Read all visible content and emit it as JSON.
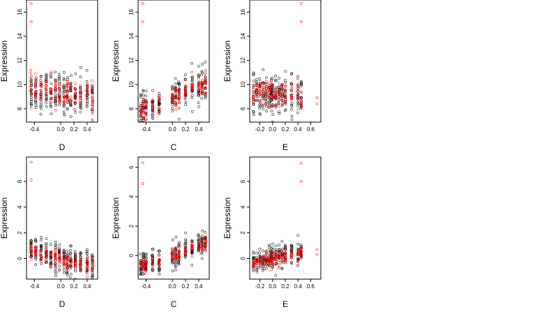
{
  "chart_data": [
    {
      "type": "scatter",
      "xlabel": "D",
      "ylabel": "Expression",
      "xlim": [
        -0.52,
        0.56
      ],
      "ylim": [
        6.9,
        17.0
      ],
      "xticks": [
        -0.4,
        0.0,
        0.2,
        0.4
      ],
      "xtick_labels": [
        "-0.4",
        "0.0",
        "0.2",
        "0.4"
      ],
      "yticks": [
        8,
        10,
        12,
        14,
        16
      ],
      "ytick_labels": [
        "8",
        "10",
        "12",
        "14",
        "16"
      ],
      "grid": false,
      "x_groups": [
        -0.45,
        -0.38,
        -0.3,
        -0.22,
        -0.15,
        -0.08,
        -0.02,
        0.05,
        0.1,
        0.15,
        0.22,
        0.3,
        0.4,
        0.48
      ],
      "observed": {
        "color": "#000000",
        "mean_intercept": 9.3,
        "mean_slope": -0.6,
        "spread": 0.8,
        "points_per_group": 18
      },
      "fitted": {
        "color": "#ff0000",
        "mean_intercept": 9.3,
        "mean_slope": -0.6,
        "spread": 0.6,
        "points_per_group": 10
      },
      "outliers": [
        {
          "x": -0.45,
          "y": 16.7
        },
        {
          "x": -0.45,
          "y": 15.2
        }
      ]
    },
    {
      "type": "scatter",
      "xlabel": "C",
      "ylabel": "Expression",
      "xlim": [
        -0.52,
        0.56
      ],
      "ylim": [
        6.9,
        17.0
      ],
      "xticks": [
        -0.4,
        0.0,
        0.2,
        0.4
      ],
      "xtick_labels": [
        "-0.4",
        "0.0",
        "0.2",
        "0.4"
      ],
      "yticks": [
        8,
        10,
        12,
        14,
        16
      ],
      "ytick_labels": [
        "8",
        "10",
        "12",
        "14",
        "16"
      ],
      "grid": false,
      "x_groups": [
        -0.48,
        -0.44,
        -0.4,
        -0.3,
        -0.2,
        0.0,
        0.05,
        0.1,
        0.2,
        0.3,
        0.4,
        0.45,
        0.5
      ],
      "observed": {
        "color": "#000000",
        "mean_intercept": 8.9,
        "mean_slope": 2.4,
        "spread": 0.7,
        "points_per_group": 18
      },
      "fitted": {
        "color": "#ff0000",
        "mean_intercept": 8.9,
        "mean_slope": 2.4,
        "spread": 0.45,
        "points_per_group": 10
      },
      "outliers": [
        {
          "x": -0.45,
          "y": 16.7
        },
        {
          "x": -0.45,
          "y": 15.2
        }
      ]
    },
    {
      "type": "scatter",
      "xlabel": "E",
      "ylabel": "Expression",
      "xlim": [
        -0.36,
        0.76
      ],
      "ylim": [
        6.9,
        17.0
      ],
      "xticks": [
        -0.2,
        0.0,
        0.2,
        0.4,
        0.6
      ],
      "xtick_labels": [
        "-0.2",
        "0.0",
        "0.2",
        "0.4",
        "0.6"
      ],
      "yticks": [
        8,
        10,
        12,
        14,
        16
      ],
      "ytick_labels": [
        "8",
        "10",
        "12",
        "14",
        "16"
      ],
      "grid": false,
      "x_groups": [
        -0.3,
        -0.25,
        -0.2,
        -0.15,
        -0.1,
        -0.05,
        -0.02,
        0.0,
        0.05,
        0.1,
        0.15,
        0.2,
        0.3,
        0.4,
        0.45
      ],
      "observed": {
        "color": "#000000",
        "mean_intercept": 9.2,
        "mean_slope": 0.0,
        "spread": 0.8,
        "points_per_group": 16
      },
      "fitted": {
        "color": "#ff0000",
        "mean_intercept": 9.2,
        "mean_slope": 0.0,
        "spread": 0.6,
        "points_per_group": 9
      },
      "outliers": [
        {
          "x": 0.45,
          "y": 16.7
        },
        {
          "x": 0.45,
          "y": 15.2
        },
        {
          "x": 0.7,
          "y": 8.9
        },
        {
          "x": 0.7,
          "y": 8.4
        }
      ]
    },
    {
      "type": "scatter",
      "xlabel": "D",
      "ylabel": "Expression",
      "xlim": [
        -0.52,
        0.56
      ],
      "ylim": [
        -1.6,
        7.9
      ],
      "xticks": [
        -0.4,
        0.0,
        0.2,
        0.4
      ],
      "xtick_labels": [
        "-0.4",
        "0.0",
        "0.2",
        "0.4"
      ],
      "yticks": [
        0,
        2,
        4,
        6
      ],
      "ytick_labels": [
        "0",
        "2",
        "4",
        "6"
      ],
      "grid": false,
      "x_groups": [
        -0.45,
        -0.38,
        -0.3,
        -0.22,
        -0.15,
        -0.08,
        -0.02,
        0.05,
        0.1,
        0.15,
        0.22,
        0.3,
        0.4,
        0.48
      ],
      "observed": {
        "color": "#000000",
        "mean_intercept": 0.0,
        "mean_slope": -1.35,
        "spread": 0.55,
        "points_per_group": 18
      },
      "fitted": {
        "color": "#ff0000",
        "mean_intercept": 0.0,
        "mean_slope": -1.35,
        "spread": 0.3,
        "points_per_group": 10
      },
      "outliers": [
        {
          "x": -0.45,
          "y": 7.5
        },
        {
          "x": -0.45,
          "y": 6.1
        }
      ]
    },
    {
      "type": "scatter",
      "xlabel": "C",
      "ylabel": "Expression",
      "xlim": [
        -0.52,
        0.56
      ],
      "ylim": [
        -1.6,
        6.7
      ],
      "xticks": [
        -0.4,
        0.0,
        0.2,
        0.4
      ],
      "xtick_labels": [
        "-0.4",
        "0.0",
        "0.2",
        "0.4"
      ],
      "yticks": [
        0,
        2,
        4,
        6
      ],
      "ytick_labels": [
        "0",
        "2",
        "4",
        "6"
      ],
      "grid": false,
      "x_groups": [
        -0.48,
        -0.44,
        -0.4,
        -0.3,
        -0.2,
        0.0,
        0.05,
        0.1,
        0.2,
        0.3,
        0.4,
        0.45,
        0.5
      ],
      "observed": {
        "color": "#000000",
        "mean_intercept": 0.0,
        "mean_slope": 1.55,
        "spread": 0.45,
        "points_per_group": 18
      },
      "fitted": {
        "color": "#ff0000",
        "mean_intercept": 0.0,
        "mean_slope": 1.55,
        "spread": 0.25,
        "points_per_group": 10
      },
      "outliers": [
        {
          "x": -0.45,
          "y": 6.3
        },
        {
          "x": -0.45,
          "y": 4.9
        }
      ]
    },
    {
      "type": "scatter",
      "xlabel": "E",
      "ylabel": "Expression",
      "xlim": [
        -0.36,
        0.76
      ],
      "ylim": [
        -1.6,
        7.9
      ],
      "xticks": [
        -0.2,
        0.0,
        0.2,
        0.4,
        0.6
      ],
      "xtick_labels": [
        "-0.2",
        "0.0",
        "0.2",
        "0.4",
        "0.6"
      ],
      "yticks": [
        0,
        2,
        4,
        6
      ],
      "ytick_labels": [
        "0",
        "2",
        "4",
        "6"
      ],
      "grid": false,
      "x_groups": [
        -0.3,
        -0.25,
        -0.2,
        -0.15,
        -0.1,
        -0.05,
        -0.02,
        0.0,
        0.05,
        0.1,
        0.15,
        0.2,
        0.3,
        0.4,
        0.45
      ],
      "observed": {
        "color": "#000000",
        "mean_intercept": 0.0,
        "mean_slope": 1.0,
        "spread": 0.45,
        "points_per_group": 16
      },
      "fitted": {
        "color": "#ff0000",
        "mean_intercept": 0.0,
        "mean_slope": 1.0,
        "spread": 0.25,
        "points_per_group": 9
      },
      "outliers": [
        {
          "x": 0.45,
          "y": 7.4
        },
        {
          "x": 0.45,
          "y": 6.0
        },
        {
          "x": 0.7,
          "y": 0.7
        },
        {
          "x": 0.7,
          "y": 0.3
        }
      ]
    }
  ]
}
